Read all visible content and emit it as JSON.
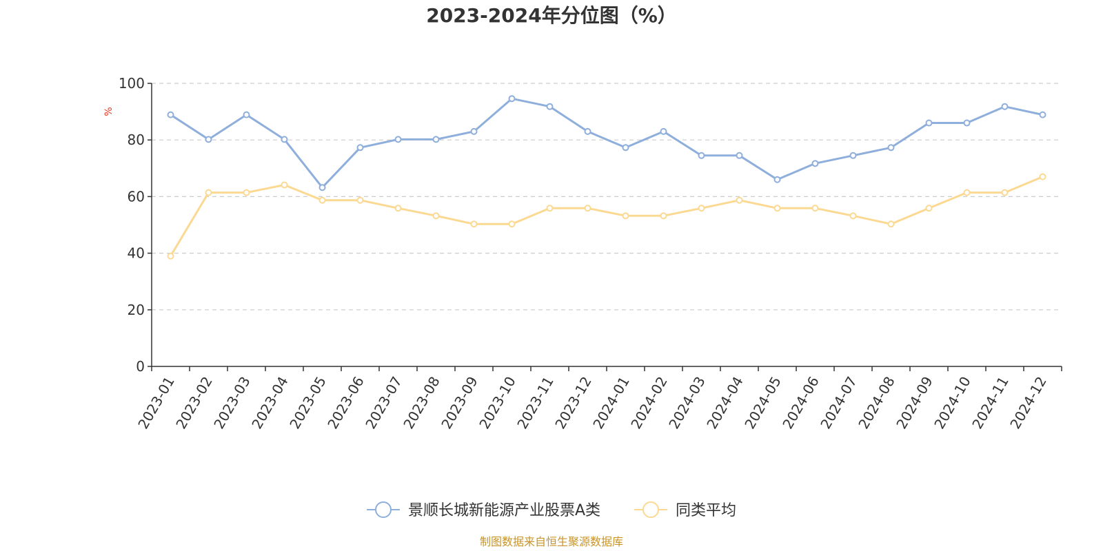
{
  "chart_data": {
    "type": "line",
    "title": "2023-2024年分位图（%）",
    "ylabel": "%",
    "ylim": [
      0,
      100
    ],
    "yticks": [
      "0",
      "20",
      "40",
      "60",
      "80",
      "100"
    ],
    "grid": true,
    "legend_position": "bottom-center",
    "categories": [
      "2023-01",
      "2023-02",
      "2023-03",
      "2023-04",
      "2023-05",
      "2023-06",
      "2023-07",
      "2023-08",
      "2023-09",
      "2023-10",
      "2023-11",
      "2023-12",
      "2024-01",
      "2024-02",
      "2024-03",
      "2024-04",
      "2024-05",
      "2024-06",
      "2024-07",
      "2024-08",
      "2024-09",
      "2024-10",
      "2024-11",
      "2024-12"
    ],
    "series": [
      {
        "name": "景顺长城新能源产业股票A类",
        "color": "#8eaedb",
        "values": [
          88.9,
          80.2,
          88.9,
          80.2,
          63.2,
          77.3,
          80.2,
          80.2,
          83.0,
          94.6,
          91.8,
          83.0,
          77.3,
          83.0,
          74.5,
          74.5,
          66.0,
          71.7,
          74.5,
          77.3,
          86.0,
          86.0,
          91.8,
          88.9
        ]
      },
      {
        "name": "同类平均",
        "color": "#fbd992",
        "values": [
          39.0,
          61.4,
          61.4,
          64.1,
          58.7,
          58.7,
          55.9,
          53.2,
          50.3,
          50.3,
          55.9,
          55.9,
          53.2,
          53.2,
          55.9,
          58.7,
          55.9,
          55.9,
          53.2,
          50.3,
          55.9,
          61.4,
          61.4,
          67.0
        ]
      }
    ],
    "source": "制图数据来自恒生聚源数据库",
    "unit_color": "#e8341c",
    "source_color": "#c8942a",
    "axis_color": "#333333",
    "grid_color": "#cccccc"
  }
}
